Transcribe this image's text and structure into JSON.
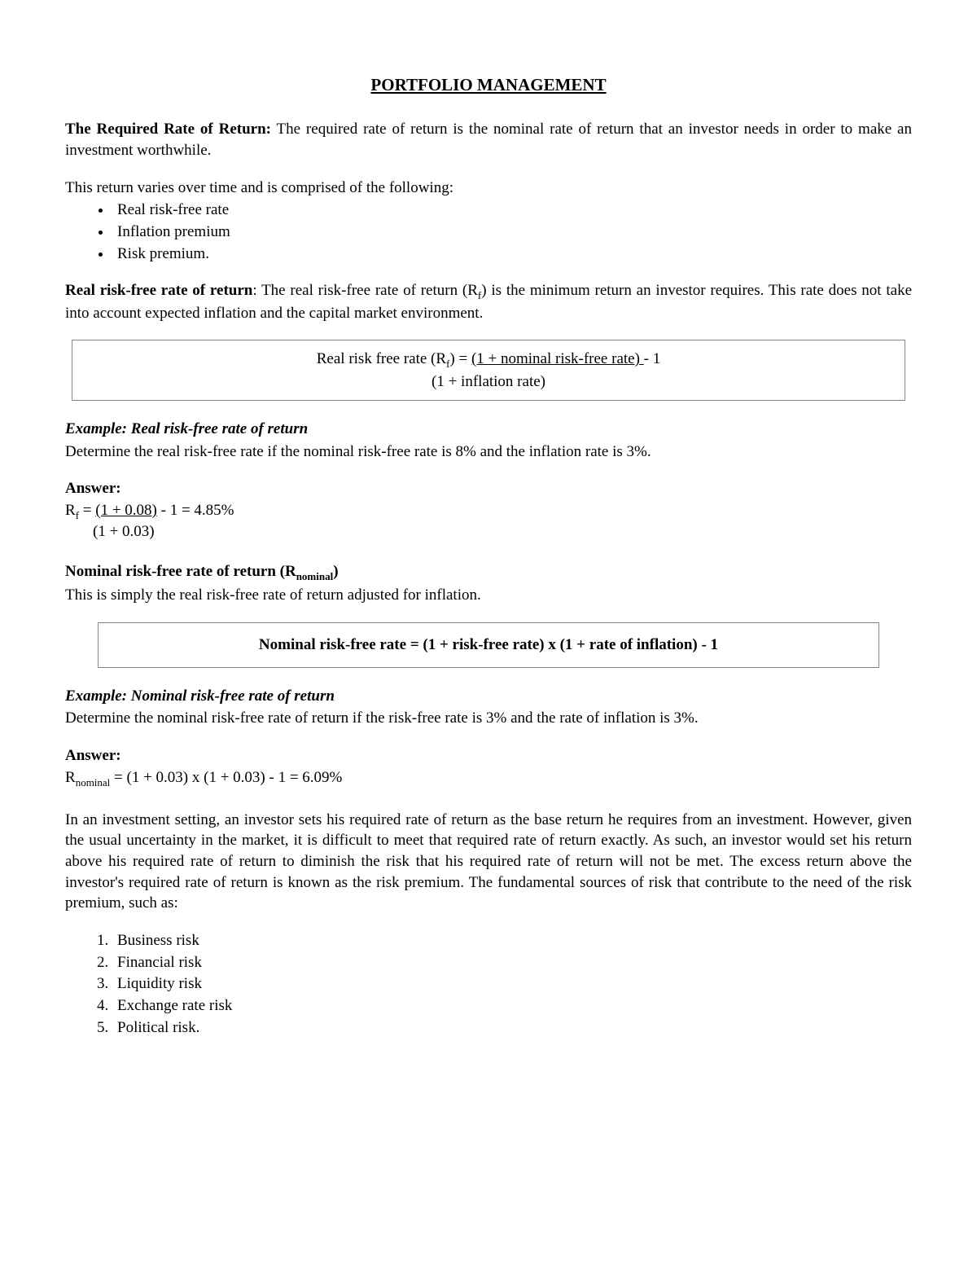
{
  "title": "PORTFOLIO MANAGEMENT",
  "intro": {
    "heading": "The Required Rate of Return:",
    "text": " The required rate of return is the nominal rate of return that an investor needs in order to make an investment worthwhile."
  },
  "comprised_intro": "This return varies over time and is comprised of the following:",
  "bullets": [
    "Real risk-free rate",
    "Inflation premium",
    "Risk premium."
  ],
  "real_rf": {
    "heading": "Real risk-free rate of return",
    "colon": ": ",
    "text_a": "The real risk-free rate of return (R",
    "text_a_sub": "f",
    "text_b": ") is the minimum return an investor requires. This rate does not take into account expected inflation and the capital market environment."
  },
  "formula1": {
    "lhs": "Real risk free rate (R",
    "lhs_sub": "f",
    "lhs2": ") = ",
    "numer": "(1 + nominal risk-free rate) ",
    "minus": " - 1",
    "denom": "(1 + inflation rate)"
  },
  "example1": {
    "heading": "Example: Real risk-free rate of return",
    "text": "Determine the real risk-free rate if the nominal risk-free rate is 8% and the inflation rate is 3%."
  },
  "answer1": {
    "label": "Answer:",
    "line1_a": "R",
    "line1_sub": "f",
    "line1_b": " = ",
    "line1_frac": "(1 + 0.08)",
    "line1_c": " - 1 = 4.85%",
    "line2": "(1 + 0.03)"
  },
  "nominal_rf": {
    "heading_a": "Nominal risk-free rate of return (R",
    "heading_sub": "nominal",
    "heading_b": ")",
    "text": "This is simply the real risk-free rate of return adjusted for inflation."
  },
  "formula2": "Nominal risk-free rate = (1 + risk-free rate) x (1 + rate of inflation) - 1",
  "example2": {
    "heading": "Example: Nominal risk-free rate of return",
    "text": "Determine the nominal risk-free rate of return if the risk-free rate is 3% and the rate of inflation is 3%."
  },
  "answer2": {
    "label": "Answer:",
    "line_a": "R",
    "line_sub": "nominal",
    "line_b": " = (1 + 0.03) x (1 + 0.03) - 1 = 6.09%"
  },
  "risk_premium_para": "In an investment setting, an investor sets his required rate of return as the base return he requires from an investment. However, given the usual uncertainty in the market, it is difficult to meet that required rate of return exactly. As such, an investor would set his return above his required rate of return to diminish the risk that his required rate of return will not be met. The excess return above the investor's required rate of return is known as the risk premium.  The fundamental sources of risk that contribute to the need of the risk premium, such as:",
  "risk_list": [
    "Business risk",
    "Financial risk",
    "Liquidity risk",
    "Exchange rate risk",
    "Political risk."
  ]
}
